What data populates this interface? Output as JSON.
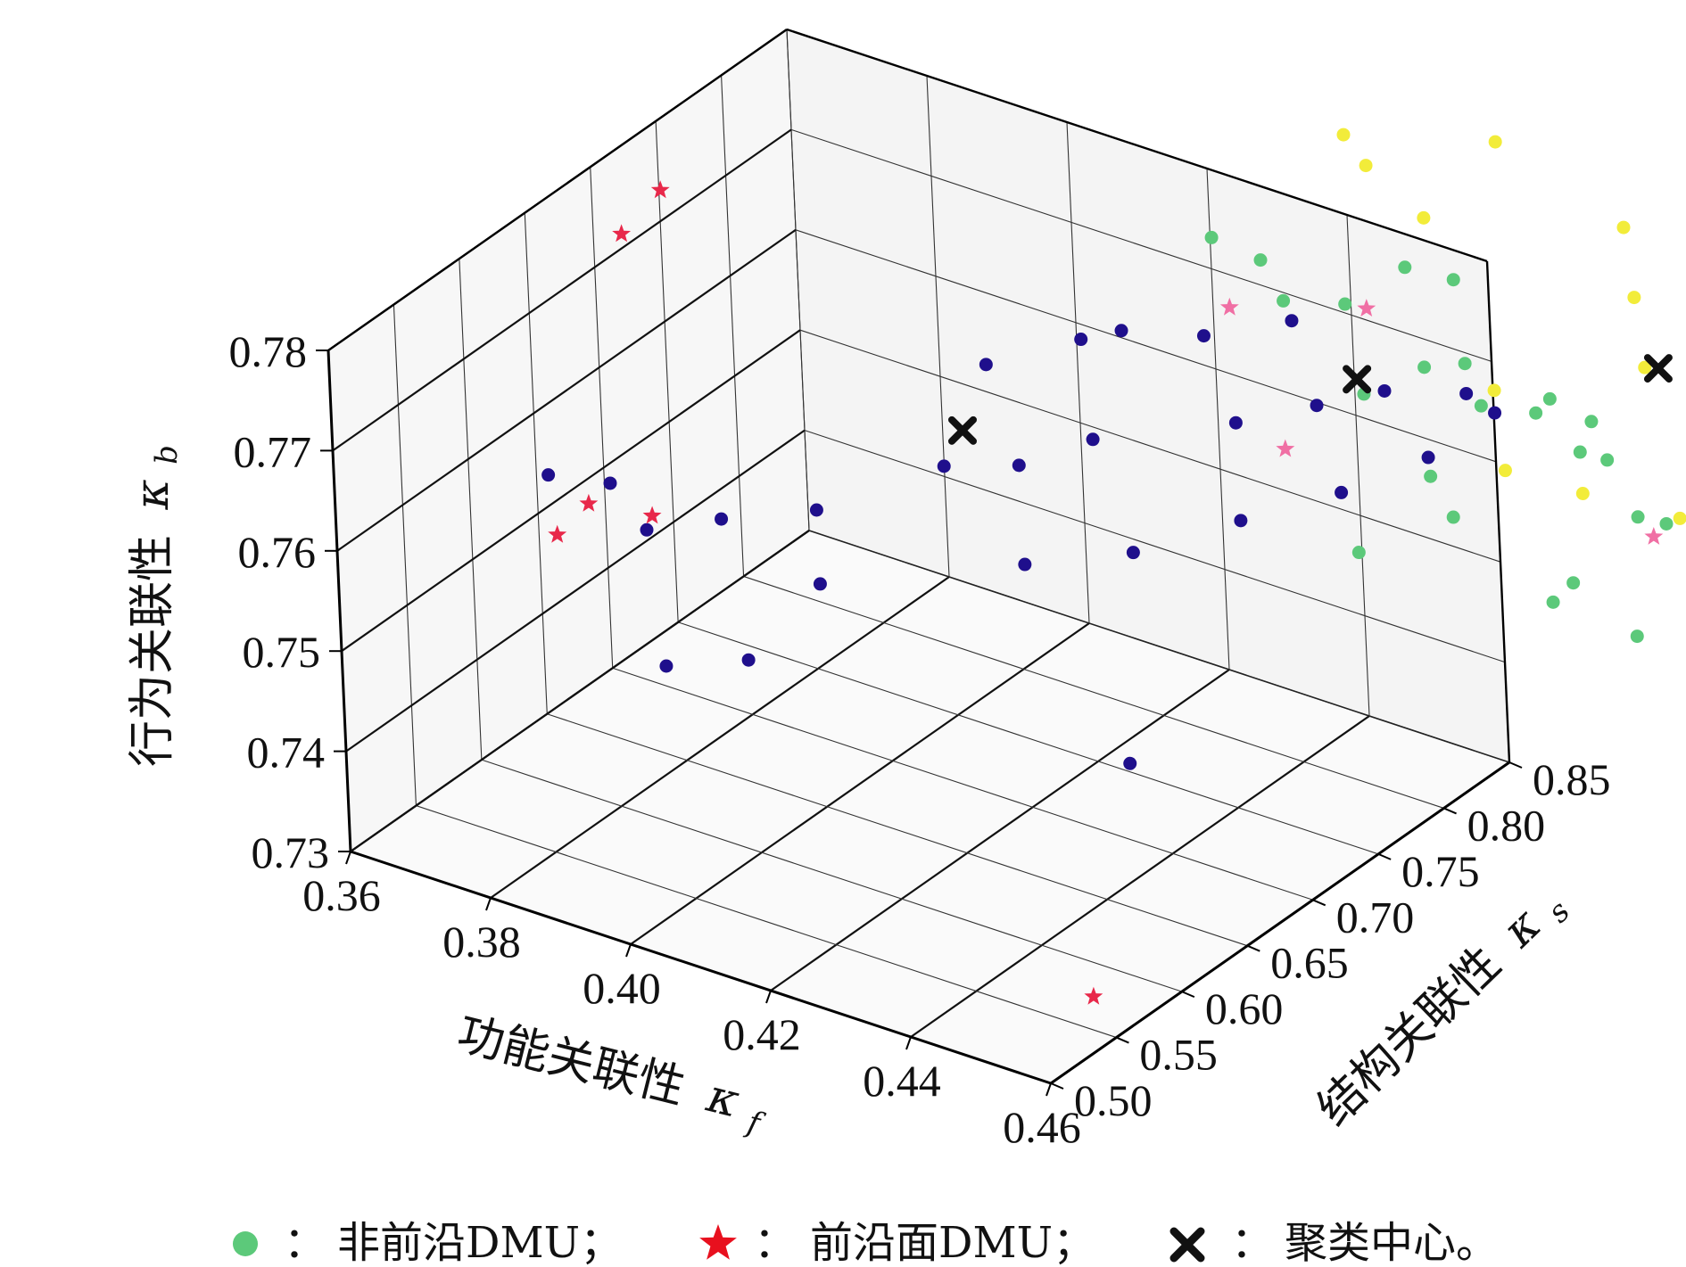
{
  "chart_data": {
    "type": "scatter3d",
    "x_axis": {
      "label": "功能关联性",
      "symbol": "κ",
      "subscript": "f",
      "range": [
        0.36,
        0.46
      ],
      "ticks": [
        "0.36",
        "0.38",
        "0.40",
        "0.42",
        "0.44",
        "0.46"
      ]
    },
    "y_axis": {
      "label": "结构关联性",
      "symbol": "κ",
      "subscript": "s",
      "range": [
        0.5,
        0.85
      ],
      "ticks": [
        "0.50",
        "0.55",
        "0.60",
        "0.65",
        "0.70",
        "0.75",
        "0.80",
        "0.85"
      ]
    },
    "z_axis": {
      "label": "行为关联性",
      "symbol": "κ",
      "subscript": "b",
      "range": [
        0.73,
        0.78
      ],
      "ticks": [
        "0.73",
        "0.74",
        "0.75",
        "0.76",
        "0.77",
        "0.78"
      ]
    },
    "series": [
      {
        "name": "cluster-blue",
        "marker": "circle",
        "color": "#1f0f8c",
        "points": [
          [
            0.405,
            0.5,
            0.7725
          ],
          [
            0.41,
            0.53,
            0.772
          ],
          [
            0.418,
            0.56,
            0.772
          ],
          [
            0.425,
            0.62,
            0.7725
          ],
          [
            0.43,
            0.65,
            0.771
          ],
          [
            0.435,
            0.68,
            0.772
          ],
          [
            0.44,
            0.6,
            0.768
          ],
          [
            0.446,
            0.65,
            0.766
          ],
          [
            0.452,
            0.7,
            0.766
          ],
          [
            0.455,
            0.76,
            0.764
          ],
          [
            0.46,
            0.8,
            0.765
          ],
          [
            0.42,
            0.55,
            0.766
          ],
          [
            0.415,
            0.52,
            0.76
          ],
          [
            0.405,
            0.51,
            0.758
          ],
          [
            0.452,
            0.61,
            0.75
          ],
          [
            0.4,
            0.5,
            0.776
          ],
          [
            0.395,
            0.48,
            0.7775
          ],
          [
            0.43,
            0.7,
            0.779
          ],
          [
            0.432,
            0.72,
            0.7785
          ],
          [
            0.44,
            0.74,
            0.778
          ],
          [
            0.42,
            0.68,
            0.776
          ],
          [
            0.445,
            0.78,
            0.777
          ],
          [
            0.448,
            0.72,
            0.773
          ],
          [
            0.458,
            0.78,
            0.773
          ],
          [
            0.452,
            0.76,
            0.772
          ],
          [
            0.462,
            0.82,
            0.77
          ],
          [
            0.466,
            0.82,
            0.769
          ]
        ]
      },
      {
        "name": "非前沿DMU",
        "marker": "circle",
        "color": "#5cc97a",
        "points": [
          [
            0.43,
            0.8,
            0.78
          ],
          [
            0.435,
            0.81,
            0.778
          ],
          [
            0.44,
            0.8,
            0.776
          ],
          [
            0.445,
            0.82,
            0.775
          ],
          [
            0.45,
            0.84,
            0.778
          ],
          [
            0.455,
            0.85,
            0.777
          ],
          [
            0.46,
            0.8,
            0.774
          ],
          [
            0.462,
            0.82,
            0.773
          ],
          [
            0.468,
            0.8,
            0.772
          ],
          [
            0.47,
            0.75,
            0.77
          ],
          [
            0.455,
            0.78,
            0.772
          ],
          [
            0.47,
            0.83,
            0.769
          ],
          [
            0.478,
            0.83,
            0.77
          ],
          [
            0.482,
            0.82,
            0.768
          ],
          [
            0.49,
            0.8,
            0.766
          ],
          [
            0.5,
            0.82,
            0.765
          ],
          [
            0.505,
            0.8,
            0.762
          ],
          [
            0.49,
            0.75,
            0.764
          ],
          [
            0.485,
            0.76,
            0.76
          ],
          [
            0.495,
            0.77,
            0.758
          ],
          [
            0.51,
            0.85,
            0.762
          ],
          [
            0.52,
            0.83,
            0.756
          ],
          [
            0.525,
            0.85,
            0.754
          ],
          [
            0.515,
            0.76,
            0.75
          ],
          [
            0.475,
            0.74,
            0.768
          ],
          [
            0.465,
            0.72,
            0.764
          ],
          [
            0.498,
            0.78,
            0.769
          ],
          [
            0.478,
            0.8,
            0.775
          ],
          [
            0.484,
            0.79,
            0.772
          ]
        ]
      },
      {
        "name": "cluster-yellow",
        "marker": "circle",
        "color": "#f2ec3a",
        "points": [
          [
            0.44,
            0.85,
            0.788
          ],
          [
            0.445,
            0.84,
            0.787
          ],
          [
            0.455,
            0.83,
            0.785
          ],
          [
            0.46,
            0.86,
            0.791
          ],
          [
            0.48,
            0.85,
            0.788
          ],
          [
            0.485,
            0.83,
            0.784
          ],
          [
            0.49,
            0.81,
            0.78
          ],
          [
            0.5,
            0.84,
            0.783
          ],
          [
            0.505,
            0.86,
            0.786
          ],
          [
            0.51,
            0.83,
            0.78
          ],
          [
            0.515,
            0.8,
            0.776
          ],
          [
            0.52,
            0.79,
            0.773
          ],
          [
            0.525,
            0.81,
            0.772
          ],
          [
            0.53,
            0.85,
            0.77
          ],
          [
            0.535,
            0.83,
            0.766
          ],
          [
            0.54,
            0.86,
            0.765
          ],
          [
            0.545,
            0.8,
            0.76
          ],
          [
            0.555,
            0.83,
            0.756
          ],
          [
            0.5,
            0.78,
            0.77
          ],
          [
            0.49,
            0.76,
            0.772
          ],
          [
            0.51,
            0.76,
            0.768
          ],
          [
            0.47,
            0.8,
            0.774
          ],
          [
            0.475,
            0.78,
            0.769
          ]
        ]
      },
      {
        "name": "前沿面DMU",
        "marker": "star",
        "color": "#e8284a",
        "points": [
          [
            0.37,
            0.7,
            0.78
          ],
          [
            0.368,
            0.68,
            0.777
          ],
          [
            0.385,
            0.56,
            0.765
          ],
          [
            0.392,
            0.5,
            0.769
          ],
          [
            0.4,
            0.53,
            0.77
          ],
          [
            0.455,
            0.56,
            0.732
          ]
        ]
      },
      {
        "name": "前沿面DMU (faint)",
        "marker": "star",
        "color": "#f06fa4",
        "points": [
          [
            0.44,
            0.76,
            0.779
          ],
          [
            0.452,
            0.8,
            0.778
          ],
          [
            0.455,
            0.72,
            0.772
          ],
          [
            0.5,
            0.76,
            0.77
          ]
        ]
      },
      {
        "name": "聚类中心",
        "marker": "x",
        "color": "#111111",
        "points": [
          [
            0.424,
            0.64,
            0.774
          ],
          [
            0.458,
            0.76,
            0.776
          ],
          [
            0.49,
            0.82,
            0.779
          ]
        ]
      }
    ]
  },
  "legend": [
    {
      "marker": "circle",
      "color": "#5cc97a",
      "sep": "：",
      "label": "非前沿DMU；"
    },
    {
      "marker": "star",
      "color": "#e8101e",
      "sep": "：",
      "label": "前沿面DMU；"
    },
    {
      "marker": "x",
      "color": "#111111",
      "sep": "：",
      "label": "聚类中心。"
    }
  ]
}
